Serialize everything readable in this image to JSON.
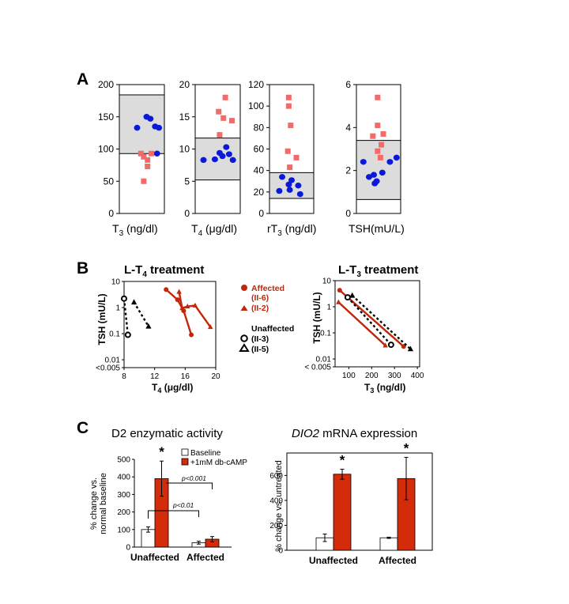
{
  "panel_labels": {
    "a": "A",
    "b": "B",
    "c": "C"
  },
  "colors": {
    "blue": "#0a18d8",
    "salmon": "#f26b6b",
    "red": "#c1270a",
    "orange": "#d42b0a",
    "band": "#dcdcdc",
    "black": "#000000"
  },
  "chart_data": [
    {
      "id": "A-T3",
      "type": "scatter",
      "xlabel": "T3 (ng/dl)",
      "ylim": [
        0,
        200
      ],
      "yticks": [
        0,
        50,
        100,
        150,
        200
      ],
      "normal_range": [
        93,
        184
      ],
      "series": [
        {
          "group": "unaffected",
          "color": "#0a18d8",
          "x": [
            -0.5,
            0.5,
            1.4,
            0.9,
            1.8,
            1.6
          ],
          "y": [
            133,
            150,
            135,
            147,
            133,
            93
          ]
        },
        {
          "group": "affected",
          "color": "#f26b6b",
          "x": [
            -0.1,
            0.2,
            1.0,
            0.6,
            0.6,
            0.2
          ],
          "y": [
            93,
            88,
            93,
            83,
            73,
            50
          ]
        }
      ]
    },
    {
      "id": "A-T4",
      "type": "scatter",
      "xlabel": "T4 (μg/dl)",
      "ylim": [
        0,
        20
      ],
      "yticks": [
        0,
        5,
        10,
        15,
        20
      ],
      "normal_range": [
        5.2,
        11.7
      ],
      "series": [
        {
          "group": "unaffected",
          "color": "#0a18d8",
          "x": [
            -1.5,
            -0.3,
            0.5,
            1.2,
            1.6,
            0.9,
            0.2
          ],
          "y": [
            8.3,
            8.4,
            8.9,
            9.2,
            8.3,
            10.3,
            9.4
          ]
        },
        {
          "group": "affected",
          "color": "#f26b6b",
          "x": [
            0.8,
            0.1,
            0.6,
            1.5,
            0.2
          ],
          "y": [
            18,
            15.8,
            14.8,
            14.4,
            12.2
          ]
        }
      ]
    },
    {
      "id": "A-rT3",
      "type": "scatter",
      "xlabel": "rT3 (ng/dl)",
      "ylim": [
        0,
        120
      ],
      "yticks": [
        0,
        20,
        40,
        60,
        80,
        100,
        120
      ],
      "normal_range": [
        14,
        38
      ],
      "series": [
        {
          "group": "unaffected",
          "color": "#0a18d8",
          "x": [
            -1.0,
            0.0,
            0.7,
            -0.3,
            -1.3,
            -0.2,
            0.9
          ],
          "y": [
            34,
            31,
            26,
            27,
            21,
            22,
            18
          ]
        },
        {
          "group": "affected",
          "color": "#f26b6b",
          "x": [
            -0.3,
            -0.3,
            -0.1,
            -0.4,
            0.5,
            -0.2
          ],
          "y": [
            108,
            100,
            82,
            58,
            52,
            43
          ]
        }
      ]
    },
    {
      "id": "A-TSH",
      "type": "scatter",
      "xlabel": "TSH(mU/L)",
      "ylim": [
        0,
        6
      ],
      "yticks": [
        0,
        2,
        4,
        6
      ],
      "normal_range": [
        0.65,
        3.4
      ],
      "series": [
        {
          "group": "unaffected",
          "color": "#0a18d8",
          "x": [
            -1.6,
            1.2,
            0.4,
            -0.5,
            -1.0,
            -0.2,
            -0.4,
            1.9
          ],
          "y": [
            2.4,
            2.4,
            1.9,
            1.8,
            1.7,
            1.5,
            1.4,
            2.6
          ]
        },
        {
          "group": "affected",
          "color": "#f26b6b",
          "x": [
            -0.1,
            -0.1,
            0.5,
            -0.6,
            0.3,
            -0.1,
            0.2
          ],
          "y": [
            5.4,
            4.1,
            3.7,
            3.6,
            3.2,
            2.9,
            2.6
          ]
        }
      ]
    },
    {
      "id": "B-T4",
      "type": "line",
      "title": "L-T4 treatment",
      "xlabel": "T4 (μg/dl)",
      "ylabel": "TSH (mU/L)",
      "xlim": [
        8,
        20
      ],
      "xticks": [
        8,
        12,
        16,
        20
      ],
      "ylog": true,
      "ylim": [
        0.005,
        10
      ],
      "yticklabels": [
        "10",
        "1",
        "0.1",
        "0.01",
        "<0.005"
      ],
      "series": [
        {
          "name": "Affected (II-6)",
          "marker": "circle",
          "dashed": false,
          "color": "#c1270a",
          "x": [
            13.5,
            15.0,
            15.8,
            16.8
          ],
          "y": [
            4.9,
            2.0,
            0.75,
            0.09
          ]
        },
        {
          "name": "Affected (II-2)",
          "marker": "triangle",
          "dashed": false,
          "color": "#c1270a",
          "x": [
            15.2,
            15.6,
            16.3,
            17.3,
            19.3
          ],
          "y": [
            4.0,
            0.95,
            1.1,
            1.2,
            0.18
          ]
        },
        {
          "name": "Unaffected (II-3)",
          "marker": "open-circle",
          "dashed": true,
          "color": "#000000",
          "x": [
            8.0,
            8.5
          ],
          "y": [
            2.2,
            0.09
          ]
        },
        {
          "name": "Unaffected (II-5)",
          "marker": "triangle",
          "dashed": true,
          "color": "#000000",
          "x": [
            9.3,
            11.2
          ],
          "y": [
            1.6,
            0.19
          ]
        }
      ]
    },
    {
      "id": "B-T3",
      "type": "line",
      "title": "L-T3 treatment",
      "xlabel": "T3 (ng/dl)",
      "ylabel": "TSH (mU/L)",
      "xlim": [
        40,
        410
      ],
      "xticks": [
        100,
        200,
        300,
        400
      ],
      "ylog": true,
      "ylim": [
        0.005,
        10
      ],
      "yticklabels": [
        "10",
        "1",
        "0.1",
        "0.01",
        "< 0.005"
      ],
      "series": [
        {
          "name": "Affected (II-6)",
          "marker": "circle",
          "dashed": false,
          "color": "#c1270a",
          "x": [
            60,
            340
          ],
          "y": [
            4.3,
            0.03
          ]
        },
        {
          "name": "Affected (II-2)",
          "marker": "triangle",
          "dashed": false,
          "color": "#c1270a",
          "x": [
            55,
            260
          ],
          "y": [
            1.5,
            0.033
          ]
        },
        {
          "name": "Unaffected (II-3)",
          "marker": "open-circle",
          "dashed": true,
          "color": "#000000",
          "x": [
            95,
            285
          ],
          "y": [
            2.3,
            0.035
          ]
        },
        {
          "name": "Unaffected (II-5)",
          "marker": "triangle",
          "dashed": true,
          "color": "#000000",
          "x": [
            115,
            370
          ],
          "y": [
            2.7,
            0.024
          ]
        }
      ]
    },
    {
      "id": "C-D2",
      "type": "bar",
      "title": "D2 enzymatic activity",
      "ylabel_line1": "% change vs.",
      "ylabel_line2": "normal baseline",
      "ylim": [
        0,
        500
      ],
      "yticks": [
        0,
        100,
        200,
        300,
        400,
        500
      ],
      "categories": [
        "Unaffected",
        "Affected"
      ],
      "series": [
        {
          "name": "Baseline",
          "color": "#ffffff",
          "values": [
            100,
            25
          ],
          "errors": [
            15,
            8
          ]
        },
        {
          "name": "+1mM db-cAMP",
          "color": "#d42b0a",
          "values": [
            390,
            45
          ],
          "errors": [
            100,
            15
          ]
        }
      ],
      "significance": [
        "*"
      ],
      "pvalue_brackets": [
        "p<0.001",
        "p<0.01"
      ]
    },
    {
      "id": "C-DIO2",
      "type": "bar",
      "title_italic": "DIO2",
      "title_rest": " mRNA expression",
      "ylabel": "% change vs. untreated",
      "ylim": [
        0,
        780
      ],
      "yticks": [
        0,
        200,
        400,
        600
      ],
      "categories": [
        "Unaffected",
        "Affected"
      ],
      "series": [
        {
          "name": "untreated",
          "color": "#ffffff",
          "values": [
            100,
            100
          ],
          "errors": [
            30,
            5
          ]
        },
        {
          "name": "treated",
          "color": "#d42b0a",
          "values": [
            610,
            575
          ],
          "errors": [
            40,
            170
          ]
        }
      ],
      "significance": [
        "*",
        "*"
      ]
    }
  ]
}
